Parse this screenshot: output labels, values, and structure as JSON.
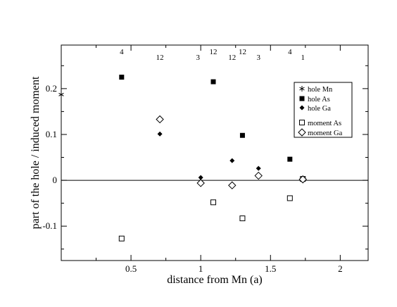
{
  "chart_data": {
    "type": "scatter",
    "xlabel": "distance from Mn (a)",
    "ylabel": "part of the hole / induced moment",
    "xlim": [
      0.0,
      2.2
    ],
    "ylim": [
      -0.175,
      0.295
    ],
    "x_ticks": [
      0.5,
      1.0,
      1.5,
      2.0
    ],
    "x_tick_labels": [
      "0.5",
      "1",
      "1.5",
      "2"
    ],
    "y_ticks": [
      -0.1,
      0.0,
      0.1,
      0.2
    ],
    "y_tick_labels": [
      "-0.1",
      "0",
      "0.1",
      "0.2"
    ],
    "zero_line": true,
    "grid": false,
    "legend_position": "top-right",
    "series": [
      {
        "name": "hole Mn",
        "marker": "star",
        "points": [
          [
            0.0,
            0.187
          ]
        ]
      },
      {
        "name": "hole As",
        "marker": "filled-square",
        "points": [
          [
            0.433,
            0.225
          ],
          [
            1.09,
            0.215
          ],
          [
            1.299,
            0.098
          ],
          [
            1.639,
            0.046
          ],
          [
            1.732,
            0.003
          ]
        ]
      },
      {
        "name": "hole Ga",
        "marker": "filled-diamond",
        "points": [
          [
            0.707,
            0.101
          ],
          [
            1.0,
            0.006
          ],
          [
            1.225,
            0.043
          ],
          [
            1.414,
            0.026
          ],
          [
            1.732,
            0.003
          ]
        ]
      },
      {
        "name": "moment As",
        "marker": "open-square",
        "points": [
          [
            0.433,
            -0.127
          ],
          [
            1.09,
            -0.048
          ],
          [
            1.299,
            -0.083
          ],
          [
            1.639,
            -0.039
          ],
          [
            1.732,
            0.003
          ]
        ]
      },
      {
        "name": "moment Ga",
        "marker": "open-diamond",
        "points": [
          [
            0.707,
            0.133
          ],
          [
            1.0,
            -0.006
          ],
          [
            1.225,
            -0.011
          ],
          [
            1.414,
            0.01
          ],
          [
            1.732,
            0.002
          ]
        ]
      }
    ],
    "top_annotations": [
      {
        "text": "4",
        "x": 0.433,
        "row": 1
      },
      {
        "text": "12",
        "x": 0.707,
        "row": 2
      },
      {
        "text": "3",
        "x": 0.98,
        "row": 2
      },
      {
        "text": "12",
        "x": 1.09,
        "row": 1
      },
      {
        "text": "12",
        "x": 1.225,
        "row": 2
      },
      {
        "text": "12",
        "x": 1.299,
        "row": 1
      },
      {
        "text": "3",
        "x": 1.414,
        "row": 2
      },
      {
        "text": "4",
        "x": 1.639,
        "row": 1
      },
      {
        "text": "1",
        "x": 1.732,
        "row": 2
      }
    ]
  }
}
